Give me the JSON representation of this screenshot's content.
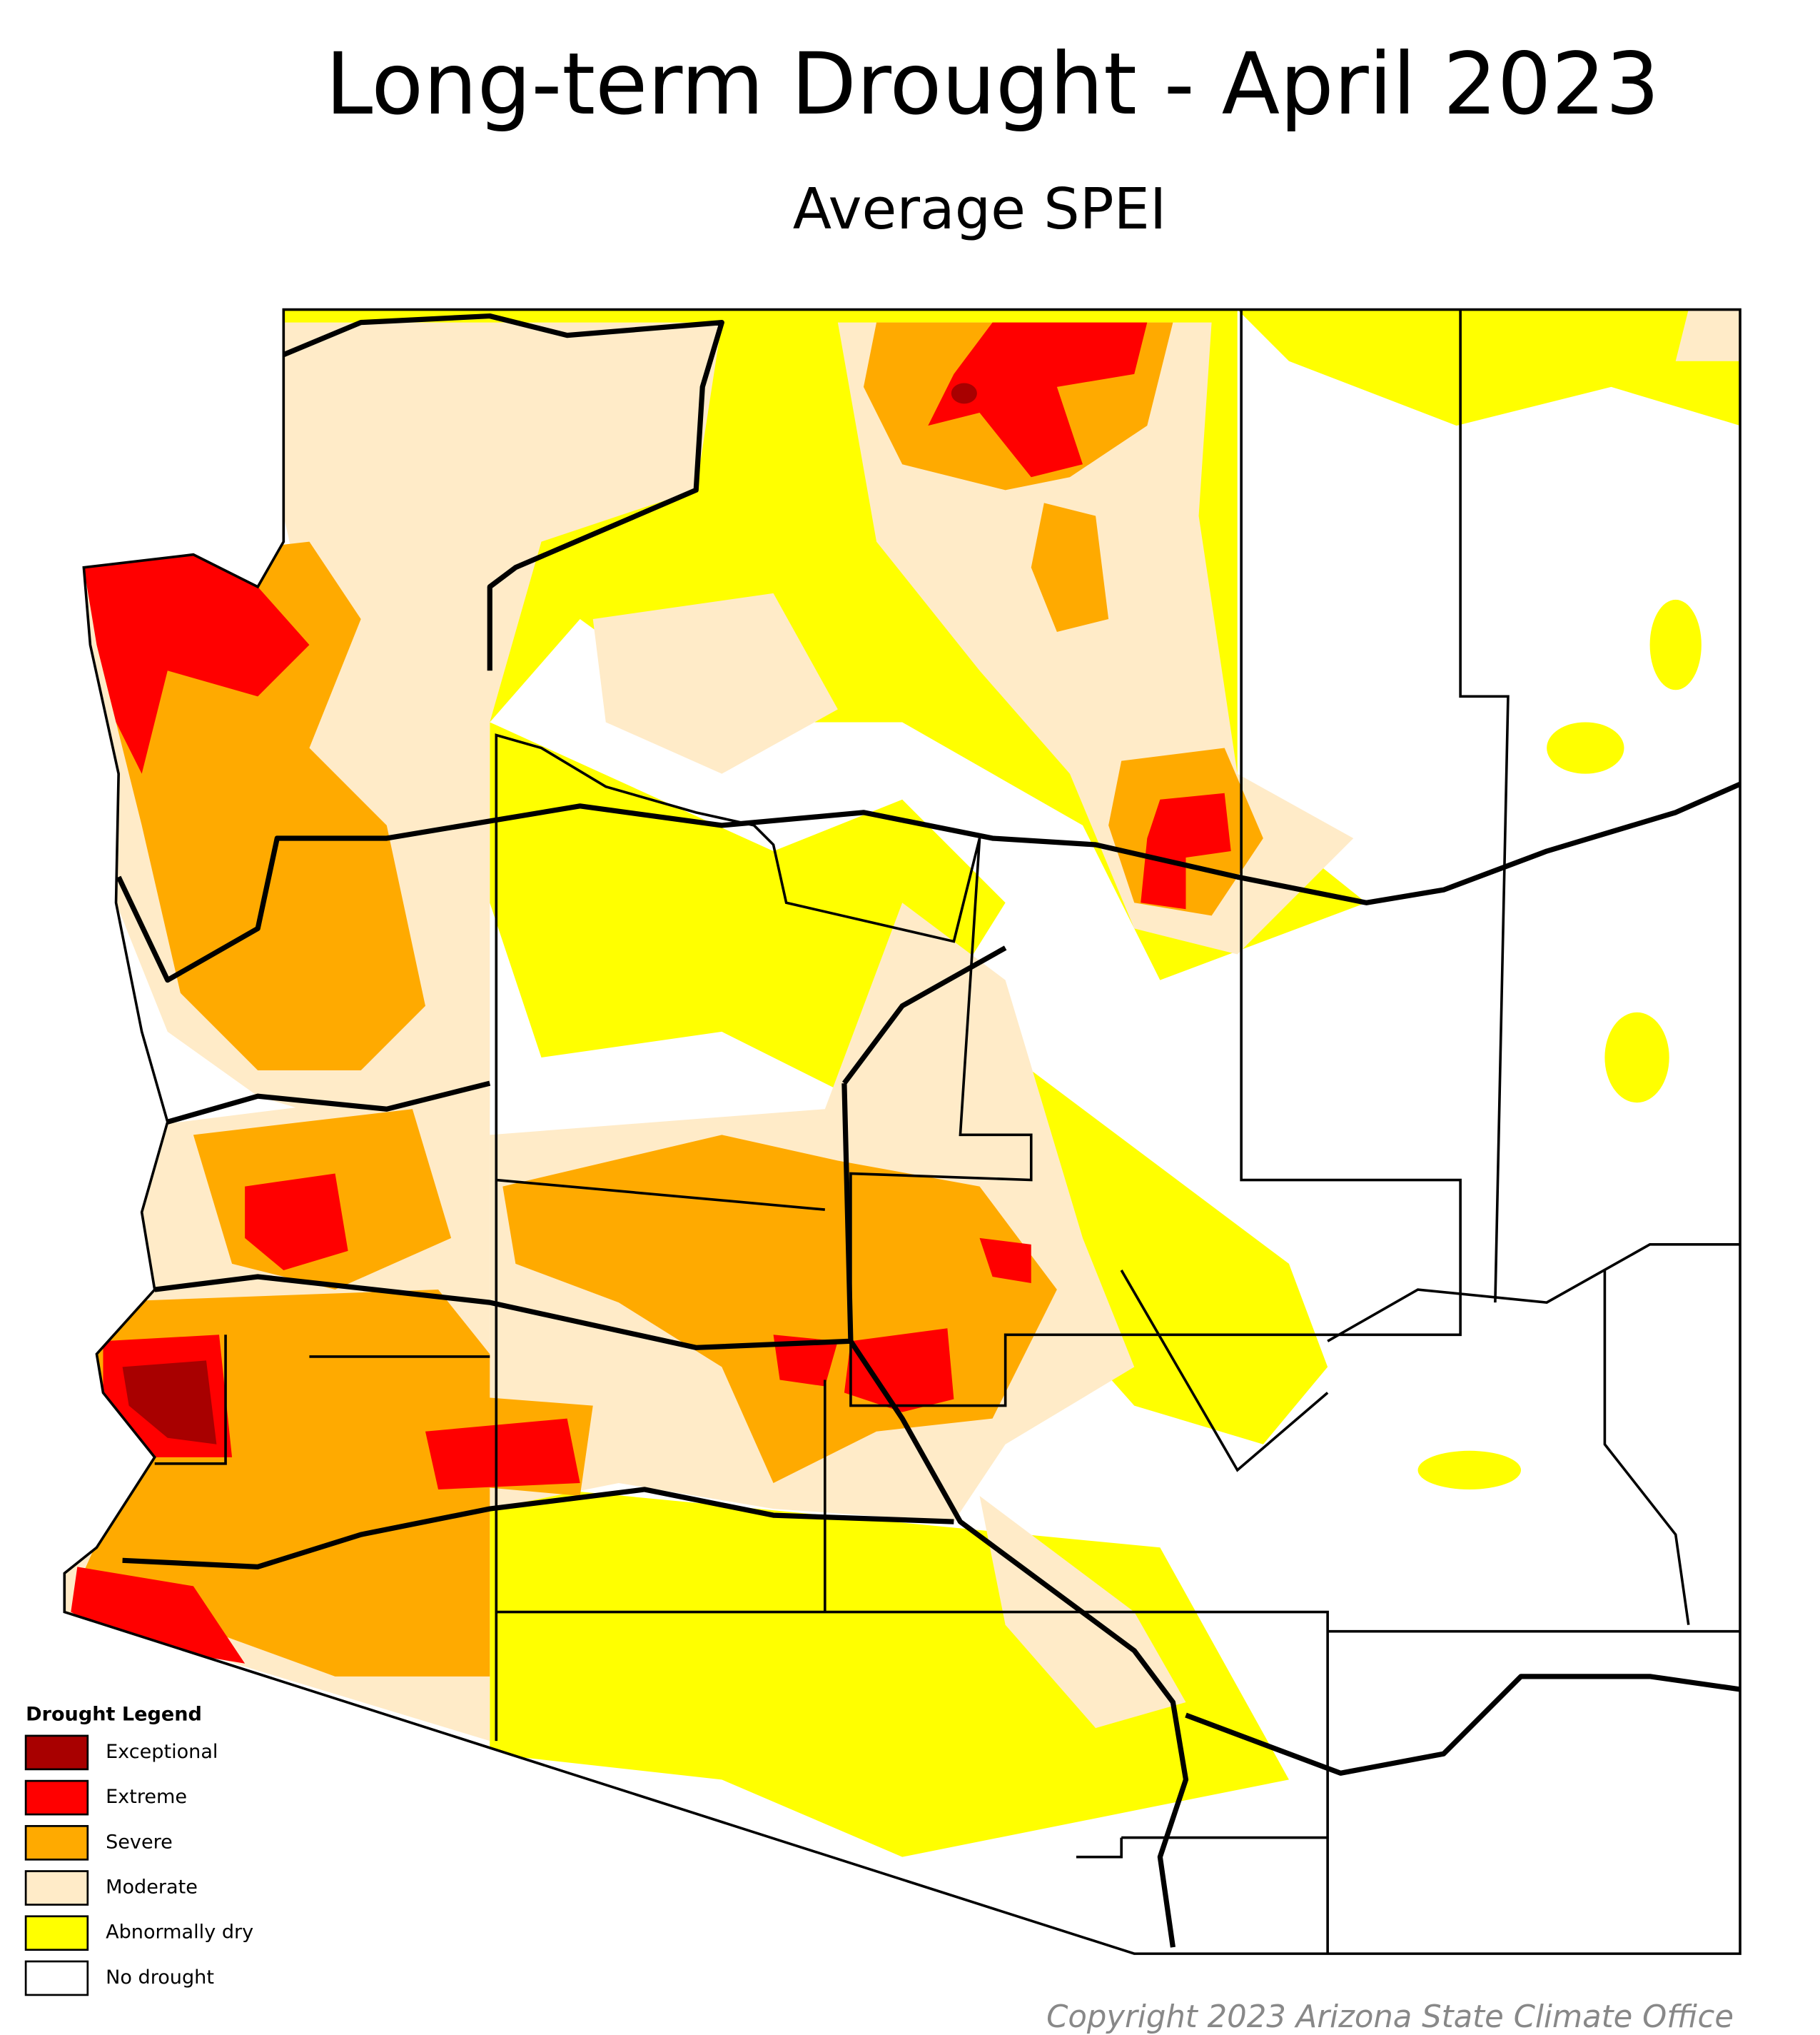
{
  "header": {
    "title": "Long-term Drought - April 2023",
    "subtitle": "Average SPEI"
  },
  "legend": {
    "title": "Drought Legend",
    "items": [
      {
        "label": "Exceptional",
        "color": "#a80000"
      },
      {
        "label": "Extreme",
        "color": "#ff0000"
      },
      {
        "label": "Severe",
        "color": "#ffaa00"
      },
      {
        "label": "Moderate",
        "color": "#ffebc8"
      },
      {
        "label": "Abnormally dry",
        "color": "#ffff00"
      },
      {
        "label": "No drought",
        "color": "#ffffff"
      }
    ]
  },
  "footer": {
    "copyright": "Copyright 2023 Arizona State Climate Office"
  }
}
